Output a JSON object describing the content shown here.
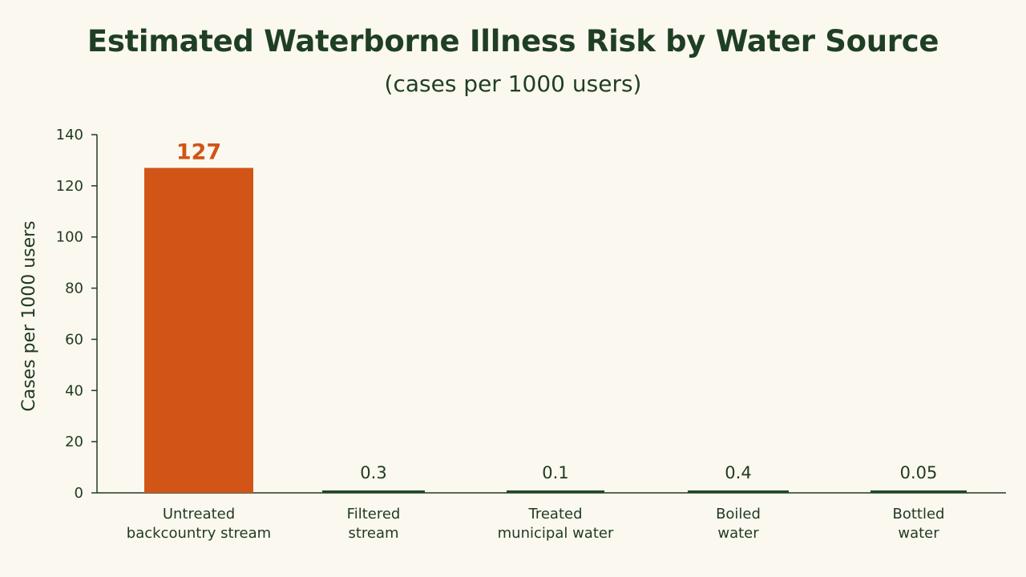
{
  "chart_data": {
    "type": "bar",
    "title": "Estimated Waterborne Illness Risk by Water Source",
    "subtitle": "(cases per 1000 users)",
    "ylabel": "Cases per 1000 users",
    "xlabel": "",
    "ylim": [
      0,
      140
    ],
    "yticks": [
      0,
      20,
      40,
      60,
      80,
      100,
      120,
      140
    ],
    "categories": [
      [
        "Untreated",
        "backcountry stream"
      ],
      [
        "Filtered",
        "stream"
      ],
      [
        "Treated",
        "municipal water"
      ],
      [
        "Boiled",
        "water"
      ],
      [
        "Bottled",
        "water"
      ]
    ],
    "values": [
      127,
      0.3,
      0.1,
      0.4,
      0.05
    ],
    "value_labels": [
      "127",
      "0.3",
      "0.1",
      "0.4",
      "0.05"
    ],
    "grid": false,
    "colors": {
      "highlight": "#d05516",
      "bar": "#1e4a24",
      "axis": "#1f3a22",
      "text": "#1f3a22"
    }
  }
}
